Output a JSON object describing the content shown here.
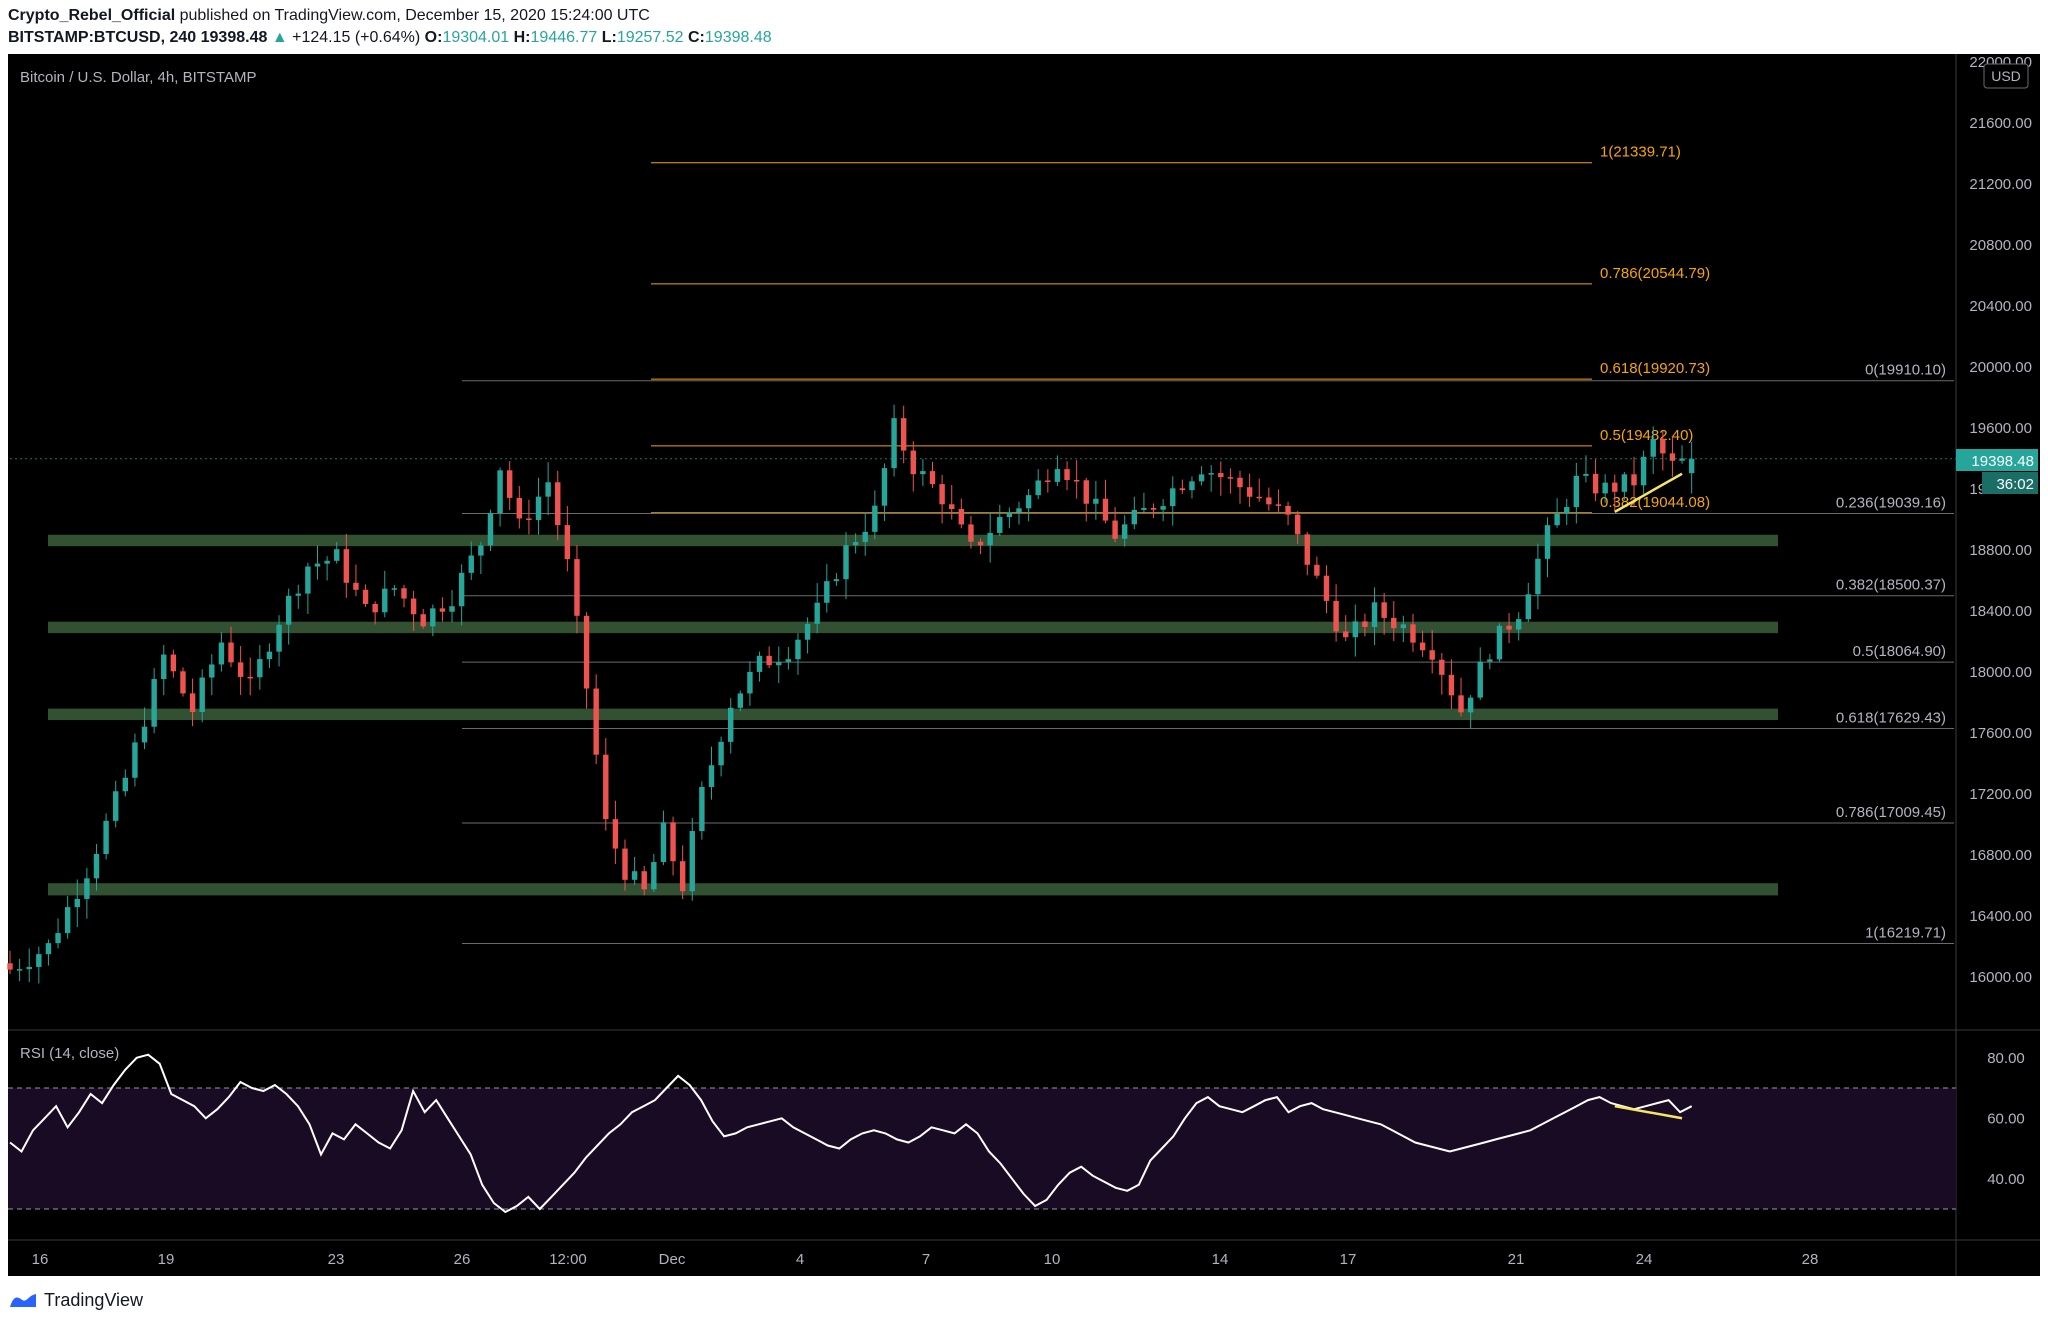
{
  "header": {
    "author": "Crypto_Rebel_Official",
    "published_text": " published on TradingView.com, December 15, 2020 15:24:00 UTC",
    "symbol": "BITSTAMP:BTCUSD, 240",
    "last": "19398.48",
    "change": "+124.15 (+0.64%)",
    "o_label": "O:",
    "o_value": "19304.01",
    "h_label": "H:",
    "h_value": "19446.77",
    "l_label": "L:",
    "l_value": "19257.52",
    "c_label": "C:",
    "c_value": "19398.48"
  },
  "pane_title": "Bitcoin / U.S. Dollar, 4h, BITSTAMP",
  "currency_label": "USD",
  "price_badge": "19398.48",
  "countdown_badge": "36:02",
  "rsi_title": "RSI (14, close)",
  "footer_brand": "TradingView",
  "colors": {
    "up": "#26a69a",
    "down": "#ef5350",
    "background": "#000000",
    "zone": "#3b5e3b",
    "fib_ext": "#f7a600",
    "fib_retr": "#6b6b6b",
    "rsi_band": "#1a0b24",
    "rsi_line": "#ffffff",
    "trendline": "#f5e663"
  },
  "chart_data": [
    {
      "type": "candlestick",
      "title": "Bitcoin / U.S. Dollar, 4h, BITSTAMP",
      "ylim": [
        15600,
        22000
      ],
      "y_ticks": [
        "16000.00",
        "16400.00",
        "16800.00",
        "17200.00",
        "17600.00",
        "18000.00",
        "18400.00",
        "18800.00",
        "19200.00",
        "19600.00",
        "20000.00",
        "20400.00",
        "20800.00",
        "21200.00",
        "21600.00",
        "22000.00"
      ],
      "x_ticks": [
        "16",
        "19",
        "23",
        "26",
        "12:00",
        "Dec",
        "4",
        "7",
        "10",
        "14",
        "17",
        "21",
        "24",
        "28"
      ],
      "close_path": [
        [
          0,
          16050
        ],
        [
          4,
          16200
        ],
        [
          8,
          16700
        ],
        [
          12,
          17300
        ],
        [
          14,
          17700
        ],
        [
          16,
          18100
        ],
        [
          19,
          17750
        ],
        [
          22,
          18200
        ],
        [
          25,
          17900
        ],
        [
          28,
          18350
        ],
        [
          31,
          18700
        ],
        [
          34,
          18750
        ],
        [
          37,
          18400
        ],
        [
          40,
          18550
        ],
        [
          43,
          18350
        ],
        [
          46,
          18500
        ],
        [
          49,
          18850
        ],
        [
          51,
          19350
        ],
        [
          53,
          18950
        ],
        [
          56,
          19250
        ],
        [
          58,
          18700
        ],
        [
          60,
          17900
        ],
        [
          62,
          17000
        ],
        [
          64,
          16700
        ],
        [
          66,
          16550
        ],
        [
          68,
          16950
        ],
        [
          70,
          16600
        ],
        [
          72,
          17200
        ],
        [
          75,
          17800
        ],
        [
          78,
          18050
        ],
        [
          81,
          18150
        ],
        [
          84,
          18400
        ],
        [
          87,
          18800
        ],
        [
          90,
          19050
        ],
        [
          92,
          19600
        ],
        [
          94,
          19350
        ],
        [
          97,
          19150
        ],
        [
          100,
          18800
        ],
        [
          103,
          19000
        ],
        [
          106,
          19150
        ],
        [
          109,
          19400
        ],
        [
          112,
          19150
        ],
        [
          115,
          18900
        ],
        [
          118,
          19050
        ],
        [
          121,
          19200
        ],
        [
          124,
          19350
        ],
        [
          127,
          19250
        ],
        [
          130,
          19150
        ],
        [
          133,
          19000
        ],
        [
          136,
          18600
        ],
        [
          139,
          18200
        ],
        [
          142,
          18400
        ],
        [
          145,
          18300
        ],
        [
          148,
          18150
        ],
        [
          151,
          17750
        ],
        [
          154,
          18150
        ],
        [
          157,
          18400
        ],
        [
          160,
          18900
        ],
        [
          163,
          19250
        ],
        [
          166,
          19200
        ],
        [
          169,
          19250
        ],
        [
          171,
          19500
        ],
        [
          173,
          19350
        ],
        [
          175,
          19398
        ]
      ],
      "series": [
        {
          "name": "",
          "kind": "ohlc",
          "generated_from": "close_path"
        }
      ],
      "horizontal_zones": [
        {
          "low": 18825,
          "high": 18900
        },
        {
          "low": 18255,
          "high": 18330
        },
        {
          "low": 17685,
          "high": 17760
        },
        {
          "low": 16535,
          "high": 16615
        }
      ],
      "fib_extension": [
        {
          "label": "1(21339.71)",
          "value": 21339.71
        },
        {
          "label": "0.786(20544.79)",
          "value": 20544.79
        },
        {
          "label": "0.618(19920.73)",
          "value": 19920.73
        },
        {
          "label": "0.5(19482.40)",
          "value": 19482.4
        },
        {
          "label": "0.382(19044.08)",
          "value": 19044.08
        }
      ],
      "fib_retracement": [
        {
          "label": "0(19910.10)",
          "value": 19910.1
        },
        {
          "label": "0.236(19039.16)",
          "value": 19039.16
        },
        {
          "label": "0.382(18500.37)",
          "value": 18500.37
        },
        {
          "label": "0.5(18064.90)",
          "value": 18064.9
        },
        {
          "label": "0.618(17629.43)",
          "value": 17629.43
        },
        {
          "label": "0.786(17009.45)",
          "value": 17009.45
        },
        {
          "label": "1(16219.71)",
          "value": 16219.71
        }
      ],
      "trendline": [
        [
          167,
          19050
        ],
        [
          174,
          19300
        ]
      ],
      "last_price": 19398.48
    },
    {
      "type": "line",
      "title": "RSI (14, close)",
      "ylim": [
        25,
        85
      ],
      "y_ticks": [
        "40.00",
        "60.00",
        "80.00"
      ],
      "bands": [
        30,
        70
      ],
      "values": [
        52,
        49,
        56,
        60,
        64,
        57,
        62,
        68,
        65,
        71,
        76,
        80,
        81,
        78,
        68,
        66,
        64,
        60,
        63,
        67,
        72,
        70,
        69,
        71,
        68,
        64,
        58,
        48,
        55,
        53,
        58,
        55,
        52,
        50,
        56,
        69,
        62,
        66,
        60,
        54,
        48,
        38,
        32,
        29,
        31,
        34,
        30,
        34,
        38,
        42,
        47,
        51,
        55,
        58,
        62,
        64,
        66,
        70,
        74,
        71,
        66,
        59,
        54,
        55,
        57,
        58,
        59,
        60,
        57,
        55,
        53,
        51,
        50,
        53,
        55,
        56,
        55,
        53,
        52,
        54,
        57,
        56,
        55,
        58,
        55,
        49,
        45,
        40,
        35,
        31,
        33,
        38,
        42,
        44,
        41,
        39,
        37,
        36,
        38,
        46,
        50,
        54,
        60,
        65,
        67,
        64,
        63,
        62,
        64,
        66,
        67,
        62,
        64,
        65,
        63,
        62,
        61,
        60,
        59,
        58,
        56,
        54,
        52,
        51,
        50,
        49,
        50,
        51,
        52,
        53,
        54,
        55,
        56,
        58,
        60,
        62,
        64,
        66,
        67,
        65,
        64,
        63,
        64,
        65,
        66,
        62,
        64
      ],
      "trendline": [
        [
          167,
          64
        ],
        [
          174,
          60
        ]
      ]
    }
  ]
}
